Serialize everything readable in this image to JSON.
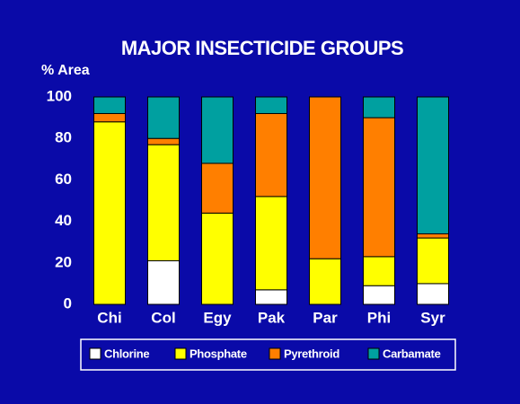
{
  "chart_data": {
    "type": "stacked_bar",
    "title": "MAJOR INSECTICIDE GROUPS",
    "y_label": "% Area",
    "categories": [
      "Chi",
      "Col",
      "Egy",
      "Pak",
      "Par",
      "Phi",
      "Syr"
    ],
    "series": [
      {
        "name": "Chlorine",
        "color": "#ffffff",
        "values": [
          0,
          21,
          0,
          7,
          0,
          9,
          10
        ]
      },
      {
        "name": "Phosphate",
        "color": "#ffff00",
        "values": [
          88,
          56,
          44,
          45,
          22,
          14,
          22
        ]
      },
      {
        "name": "Pyrethroid",
        "color": "#ff7f00",
        "values": [
          4,
          3,
          24,
          40,
          78,
          67,
          2
        ]
      },
      {
        "name": "Carbamate",
        "color": "#00a0a0",
        "values": [
          8,
          20,
          32,
          8,
          0,
          10,
          66
        ]
      }
    ],
    "ylim": [
      0,
      100
    ],
    "yticks": [
      0,
      20,
      40,
      60,
      80,
      100
    ],
    "legend": "bottom"
  }
}
